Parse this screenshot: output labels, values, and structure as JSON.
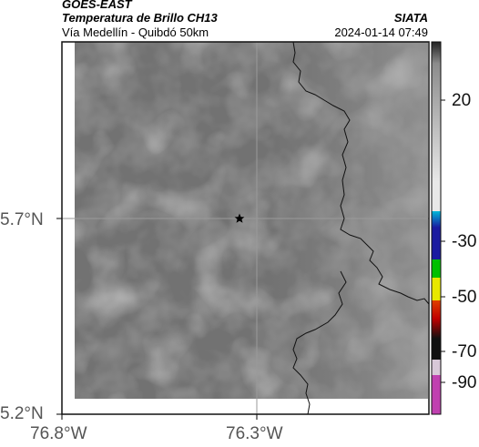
{
  "header": {
    "satellite": "GOES-EAST",
    "product": "Temperatura de Brillo CH13",
    "organization": "SIATA",
    "route": "Vía Medellín - Quibdó 50km",
    "datetime": "2024-01-14 07:49"
  },
  "map": {
    "lat_labels": [
      "5.7°N",
      "5.2°N"
    ],
    "lon_labels": [
      "76.8°W",
      "76.3°W"
    ],
    "marker": "star-marker",
    "colors": {
      "background": "#727272",
      "border": "#111111",
      "gridline": "#9a9a9a"
    }
  },
  "colorbar": {
    "tick_labels": [
      "20",
      "-30",
      "-50",
      "-70",
      "-90"
    ],
    "segments": [
      {
        "color": "#222222"
      },
      {
        "color": "#8c8c8c"
      },
      {
        "color": "#e8e8e8"
      },
      {
        "color": "#00b8d8"
      },
      {
        "color": "#1a1aa0"
      },
      {
        "color": "#00c000"
      },
      {
        "color": "#e8e800"
      },
      {
        "color": "#e04000"
      },
      {
        "color": "#c00000"
      },
      {
        "color": "#101010"
      },
      {
        "color": "#d8c8d8"
      },
      {
        "color": "#c040b0"
      }
    ]
  }
}
